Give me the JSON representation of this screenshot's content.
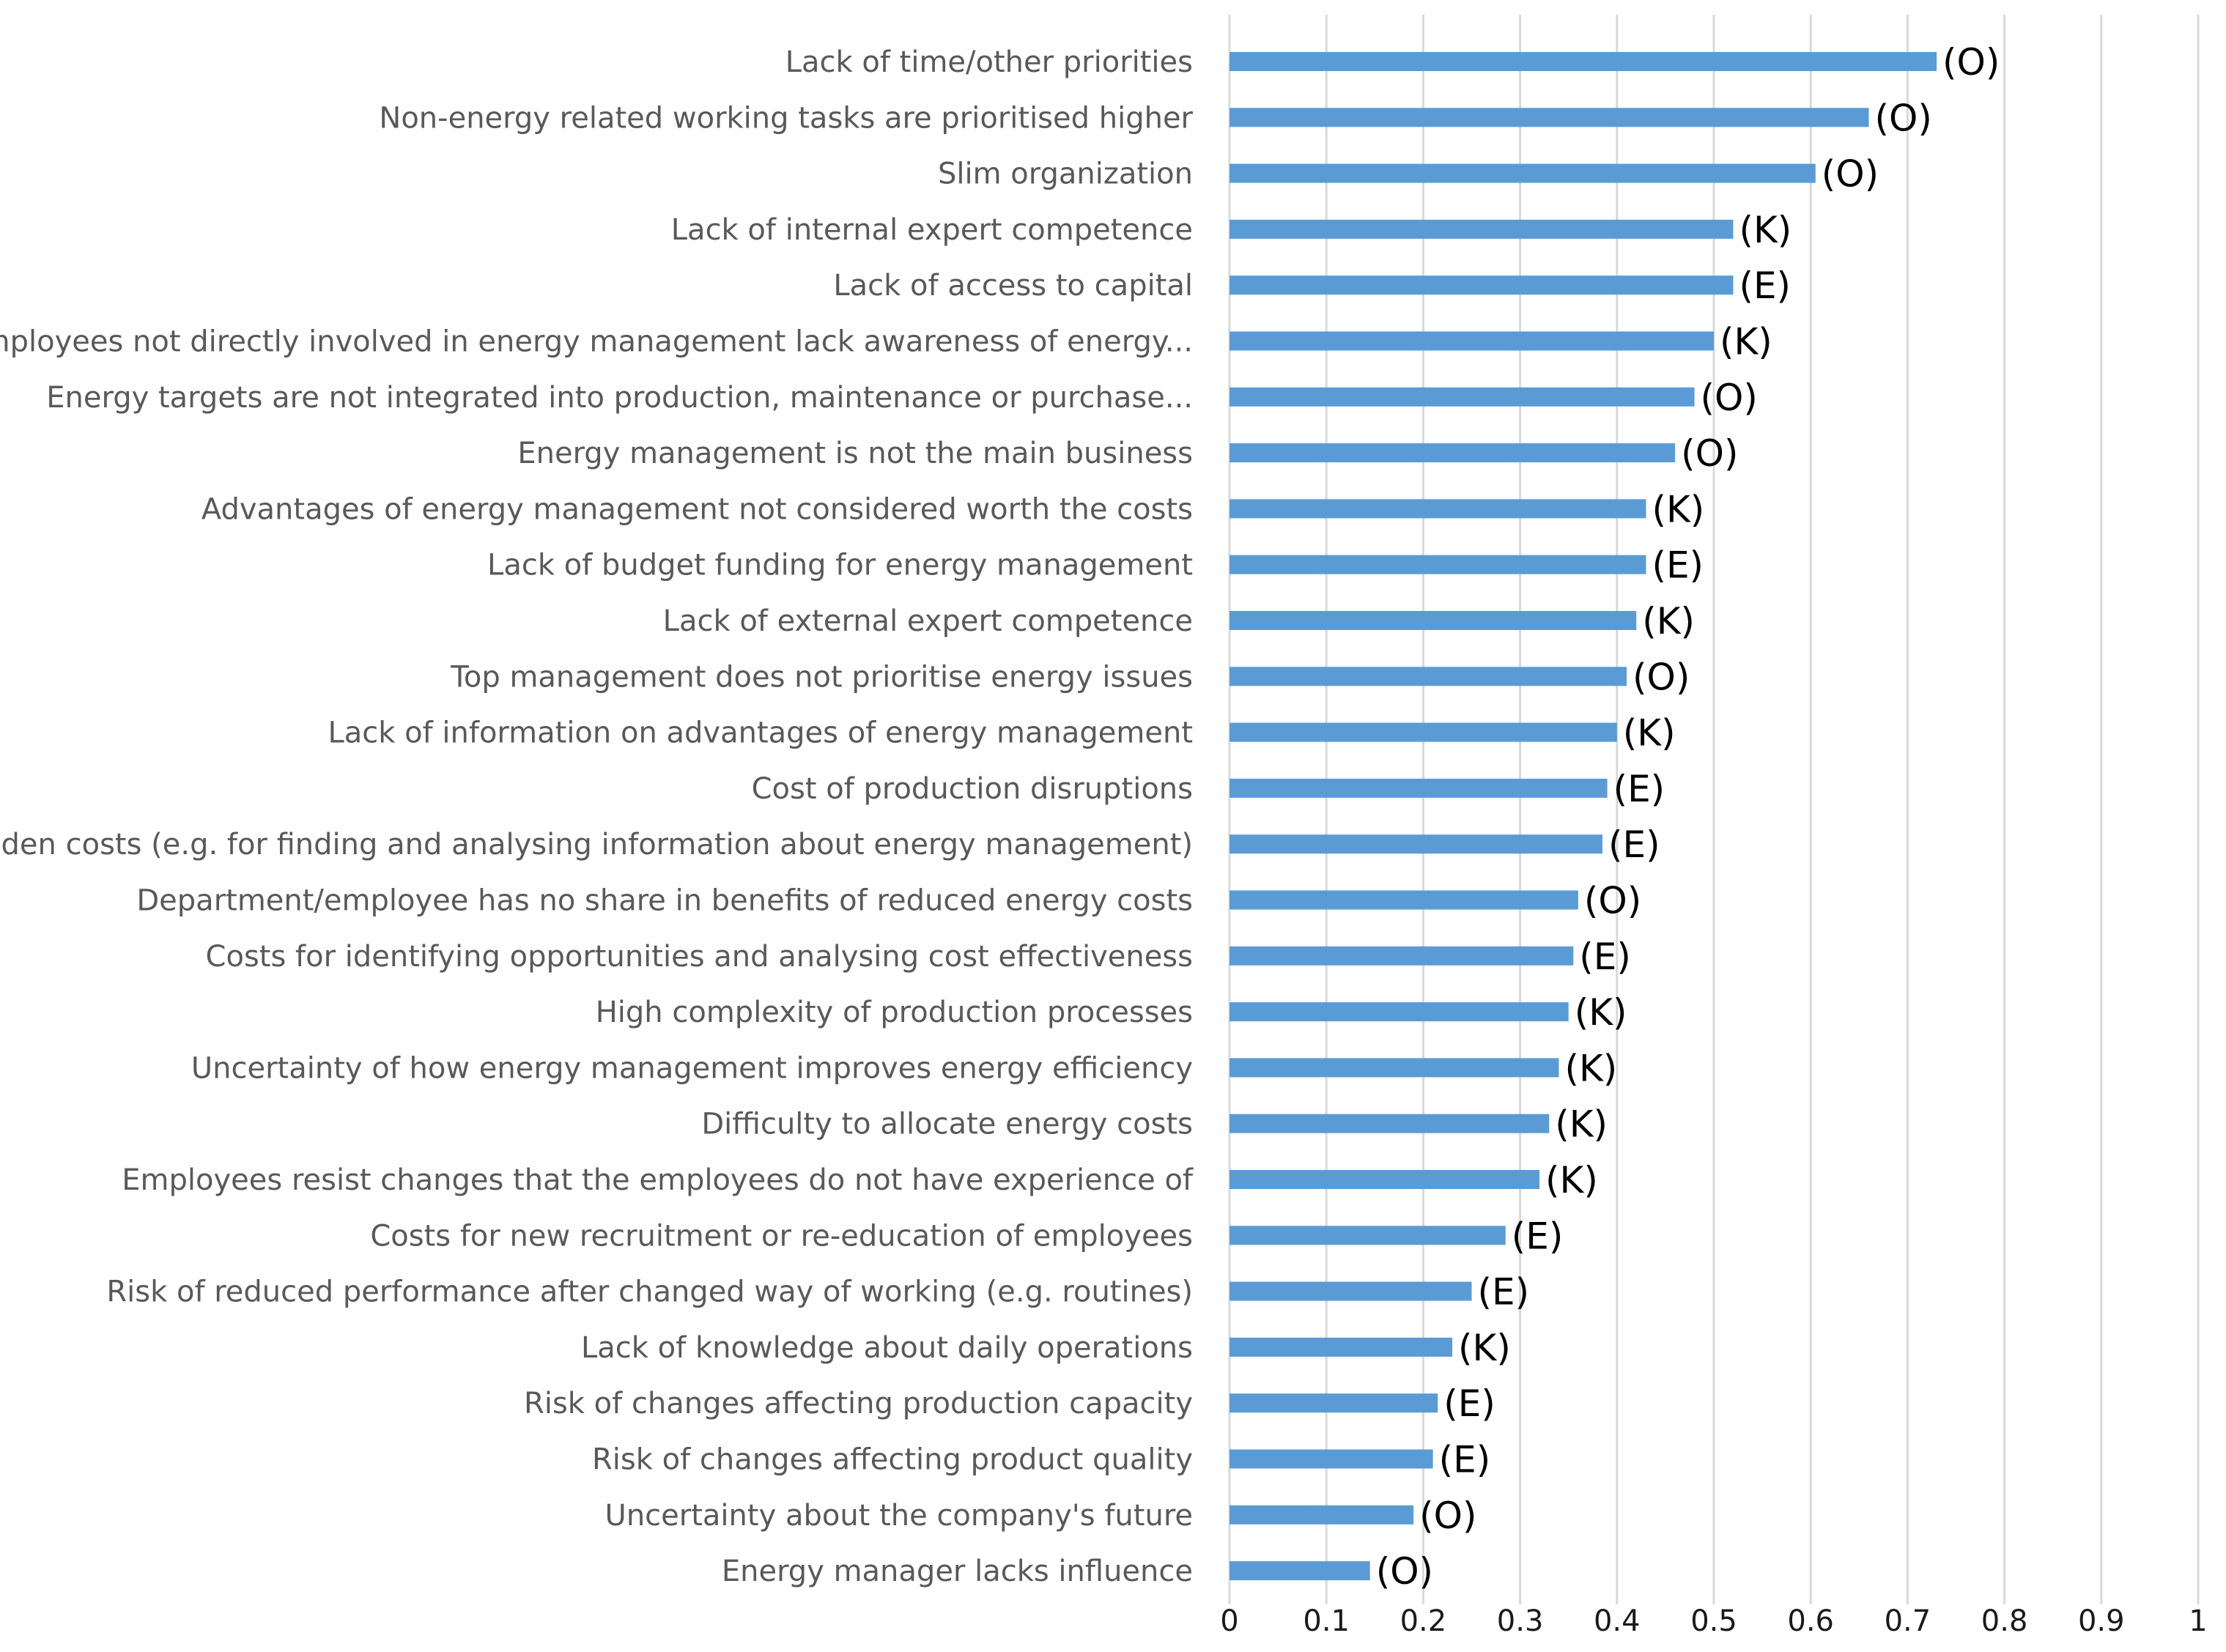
{
  "chart_data": {
    "type": "bar",
    "orientation": "horizontal",
    "title": "",
    "xlabel": "",
    "ylabel": "",
    "xlim": [
      0,
      1
    ],
    "x_ticks": [
      0,
      0.1,
      0.2,
      0.3,
      0.4,
      0.5,
      0.6,
      0.7,
      0.8,
      0.9,
      1
    ],
    "x_tick_labels": [
      "0",
      "0.1",
      "0.2",
      "0.3",
      "0.4",
      "0.5",
      "0.6",
      "0.7",
      "0.8",
      "0.9",
      "1"
    ],
    "grid": true,
    "legend": "none",
    "bar_color": "#5b9bd5",
    "grid_color": "#d9d9d9",
    "bars": [
      {
        "label": "Lack of time/other priorities",
        "value": 0.73,
        "tag": "(O)"
      },
      {
        "label": "Non-energy related working tasks are prioritised higher",
        "value": 0.66,
        "tag": "(O)"
      },
      {
        "label": "Slim organization",
        "value": 0.605,
        "tag": "(O)"
      },
      {
        "label": "Lack of internal expert competence",
        "value": 0.52,
        "tag": "(K)"
      },
      {
        "label": "Lack of access to capital",
        "value": 0.52,
        "tag": "(E)"
      },
      {
        "label": "Employees not directly involved in energy management lack awareness of energy...",
        "value": 0.5,
        "tag": "(K)"
      },
      {
        "label": "Energy targets are not integrated into production, maintenance or purchase...",
        "value": 0.48,
        "tag": "(O)"
      },
      {
        "label": "Energy management is not the main business",
        "value": 0.46,
        "tag": "(O)"
      },
      {
        "label": "Advantages of energy management not considered worth the costs",
        "value": 0.43,
        "tag": "(K)"
      },
      {
        "label": "Lack of budget funding for energy management",
        "value": 0.43,
        "tag": "(E)"
      },
      {
        "label": "Lack of external expert competence",
        "value": 0.42,
        "tag": "(K)"
      },
      {
        "label": "Top management does not prioritise energy issues",
        "value": 0.41,
        "tag": "(O)"
      },
      {
        "label": "Lack of information on advantages of energy management",
        "value": 0.4,
        "tag": "(K)"
      },
      {
        "label": "Cost of production disruptions",
        "value": 0.39,
        "tag": "(E)"
      },
      {
        "label": "Hidden costs (e.g. for finding and analysing information about energy management)",
        "value": 0.385,
        "tag": "(E)"
      },
      {
        "label": "Department/employee has no share in benefits of reduced energy costs",
        "value": 0.36,
        "tag": "(O)"
      },
      {
        "label": "Costs for identifying opportunities and analysing cost effectiveness",
        "value": 0.355,
        "tag": "(E)"
      },
      {
        "label": "High complexity of production processes",
        "value": 0.35,
        "tag": "(K)"
      },
      {
        "label": "Uncertainty of how energy management improves energy efficiency",
        "value": 0.34,
        "tag": "(K)"
      },
      {
        "label": "Difficulty to allocate energy costs",
        "value": 0.33,
        "tag": "(K)"
      },
      {
        "label": "Employees resist changes that the employees do not have experience of",
        "value": 0.32,
        "tag": "(K)"
      },
      {
        "label": "Costs for new recruitment or re-education of employees",
        "value": 0.285,
        "tag": "(E)"
      },
      {
        "label": "Risk of reduced performance after changed way of working (e.g. routines)",
        "value": 0.25,
        "tag": "(E)"
      },
      {
        "label": "Lack of knowledge about daily operations",
        "value": 0.23,
        "tag": "(K)"
      },
      {
        "label": "Risk of changes affecting production capacity",
        "value": 0.215,
        "tag": "(E)"
      },
      {
        "label": "Risk of changes affecting product quality",
        "value": 0.21,
        "tag": "(E)"
      },
      {
        "label": "Uncertainty about the company's future",
        "value": 0.19,
        "tag": "(O)"
      },
      {
        "label": "Energy manager lacks influence",
        "value": 0.145,
        "tag": "(O)"
      }
    ]
  }
}
